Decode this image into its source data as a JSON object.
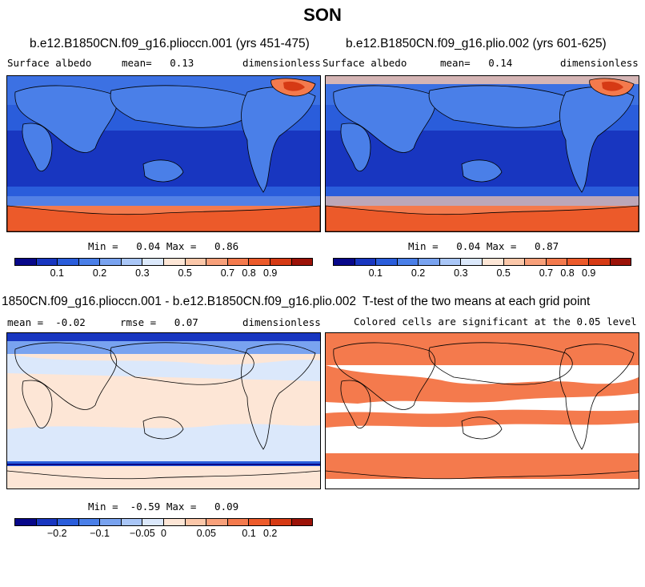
{
  "figure": {
    "title": "SON"
  },
  "panels": {
    "p1": {
      "title": "b.e12.B1850CN.f09_g16.plioccn.001 (yrs 451-475)",
      "left": "Surface albedo",
      "mid": "mean=   0.13",
      "right": "dimensionless",
      "minmax": "Min =   0.04 Max =   0.86"
    },
    "p2": {
      "title": "b.e12.B1850CN.f09_g16.plio.002 (yrs 601-625)",
      "left": "Surface albedo",
      "mid": "mean=   0.14",
      "right": "dimensionless",
      "minmax": "Min =   0.04 Max =   0.87"
    },
    "p3": {
      "title": "1850CN.f09_g16.plioccn.001 - b.e12.B1850CN.f09_g16.plio.002",
      "left": "mean =  -0.02",
      "mid": "rmse =   0.07",
      "right": "dimensionless",
      "minmax": "Min =  -0.59 Max =   0.09"
    },
    "p4": {
      "title": "T-test of the two means at each grid point",
      "subtitle": "Colored cells are significant at the 0.05 level"
    }
  },
  "colorbars": {
    "abs": {
      "labels": [
        "0.1",
        "0.2",
        "0.3",
        "0.5",
        "0.7",
        "0.8",
        "0.9"
      ],
      "colors": [
        "#08088a",
        "#1836c0",
        "#2a5ddb",
        "#4a7fe8",
        "#79a3f0",
        "#a9c6f7",
        "#dbe8fb",
        "#fde6d6",
        "#fbc7a9",
        "#f8a07a",
        "#f47a4d",
        "#ec5a2a",
        "#d63a14",
        "#9c1208"
      ]
    },
    "diff": {
      "labels": [
        "−0.2",
        "−0.1",
        "−0.05",
        "0",
        "0.05",
        "0.1",
        "0.2"
      ],
      "colors": [
        "#08088a",
        "#1836c0",
        "#2a5ddb",
        "#4a7fe8",
        "#79a3f0",
        "#a9c6f7",
        "#dbe8fb",
        "#fde6d6",
        "#fbc7a9",
        "#f8a07a",
        "#f47a4d",
        "#ec5a2a",
        "#d63a14",
        "#9c1208"
      ]
    }
  },
  "chart_data": [
    {
      "type": "heatmap",
      "title": "b.e12.B1850CN.f09_g16.plioccn.001 (yrs 451-475)",
      "variable": "Surface albedo",
      "units": "dimensionless",
      "mean": 0.13,
      "min": 0.04,
      "max": 0.86,
      "colorbar_ticks": [
        0.1,
        0.2,
        0.3,
        0.5,
        0.7,
        0.8,
        0.9
      ]
    },
    {
      "type": "heatmap",
      "title": "b.e12.B1850CN.f09_g16.plio.002 (yrs 601-625)",
      "variable": "Surface albedo",
      "units": "dimensionless",
      "mean": 0.14,
      "min": 0.04,
      "max": 0.87,
      "colorbar_ticks": [
        0.1,
        0.2,
        0.3,
        0.5,
        0.7,
        0.8,
        0.9
      ]
    },
    {
      "type": "heatmap",
      "title": "1850CN.f09_g16.plioccn.001 - b.e12.B1850CN.f09_g16.plio.002",
      "units": "dimensionless",
      "mean": -0.02,
      "rmse": 0.07,
      "min": -0.59,
      "max": 0.09,
      "colorbar_ticks": [
        -0.2,
        -0.1,
        -0.05,
        0,
        0.05,
        0.1,
        0.2
      ]
    },
    {
      "type": "heatmap",
      "title": "T-test of the two means at each grid point",
      "subtitle": "Colored cells are significant at the 0.05 level",
      "significance_level": 0.05
    }
  ]
}
